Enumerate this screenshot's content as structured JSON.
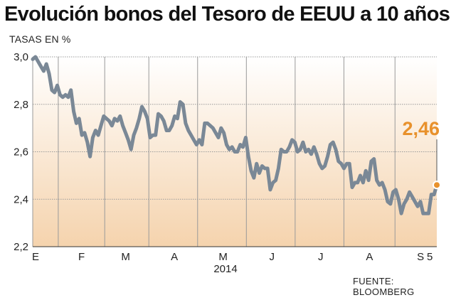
{
  "colors": {
    "line": "#7a8896",
    "highlight": "#e8912c",
    "gradient_top": "#ffffff",
    "gradient_bottom": "#f5d3ad",
    "grid": "#9a9a9a",
    "axis": "#333333"
  },
  "chart_data": {
    "type": "line",
    "title": "Evolución bonos del Tesoro de EEUU a 10 años",
    "subtitle": "TASAS EN %",
    "source": "FUENTE: BLOOMBERG",
    "x_year_label": "2014",
    "xlim": [
      0,
      174
    ],
    "ylim": [
      2.2,
      3.0
    ],
    "y_ticks": [
      3.0,
      2.8,
      2.6,
      2.4,
      2.2
    ],
    "y_tick_labels": [
      "3,0",
      "2,8",
      "2,6",
      "2,4",
      "2,2"
    ],
    "x_ticks": [
      {
        "label": "E",
        "x": 0
      },
      {
        "label": "F",
        "x": 21
      },
      {
        "label": "M",
        "x": 40
      },
      {
        "label": "A",
        "x": 61
      },
      {
        "label": "M",
        "x": 82
      },
      {
        "label": "J",
        "x": 103
      },
      {
        "label": "J",
        "x": 124
      },
      {
        "label": "A",
        "x": 145
      },
      {
        "label": "S",
        "x": 167
      },
      {
        "label": "5",
        "x": 171
      }
    ],
    "grid_x": [
      0,
      11,
      31,
      50,
      71,
      92,
      113,
      134,
      156
    ],
    "grid": true,
    "last_value_label": "2,46",
    "series": [
      {
        "values": [
          2.99,
          3.0,
          2.98,
          2.96,
          2.94,
          2.97,
          2.93,
          2.86,
          2.85,
          2.88,
          2.84,
          2.83,
          2.84,
          2.83,
          2.86,
          2.77,
          2.72,
          2.74,
          2.67,
          2.68,
          2.64,
          2.58,
          2.66,
          2.69,
          2.67,
          2.71,
          2.75,
          2.74,
          2.73,
          2.71,
          2.74,
          2.73,
          2.75,
          2.71,
          2.68,
          2.65,
          2.61,
          2.67,
          2.7,
          2.74,
          2.79,
          2.77,
          2.74,
          2.66,
          2.67,
          2.67,
          2.76,
          2.75,
          2.73,
          2.69,
          2.69,
          2.71,
          2.75,
          2.74,
          2.81,
          2.8,
          2.72,
          2.69,
          2.67,
          2.65,
          2.63,
          2.65,
          2.63,
          2.72,
          2.72,
          2.71,
          2.7,
          2.68,
          2.66,
          2.7,
          2.68,
          2.63,
          2.61,
          2.62,
          2.6,
          2.6,
          2.63,
          2.62,
          2.66,
          2.58,
          2.52,
          2.49,
          2.55,
          2.51,
          2.54,
          2.53,
          2.53,
          2.44,
          2.47,
          2.48,
          2.53,
          2.61,
          2.6,
          2.6,
          2.62,
          2.65,
          2.64,
          2.6,
          2.61,
          2.64,
          2.6,
          2.61,
          2.59,
          2.62,
          2.59,
          2.55,
          2.53,
          2.54,
          2.58,
          2.63,
          2.64,
          2.61,
          2.56,
          2.55,
          2.53,
          2.55,
          2.55,
          2.45,
          2.47,
          2.47,
          2.5,
          2.47,
          2.52,
          2.48,
          2.56,
          2.57,
          2.48,
          2.46,
          2.47,
          2.44,
          2.39,
          2.38,
          2.43,
          2.44,
          2.4,
          2.34,
          2.38,
          2.4,
          2.43,
          2.41,
          2.39,
          2.37,
          2.39,
          2.34,
          2.34,
          2.34,
          2.42,
          2.42,
          2.46
        ]
      }
    ]
  }
}
